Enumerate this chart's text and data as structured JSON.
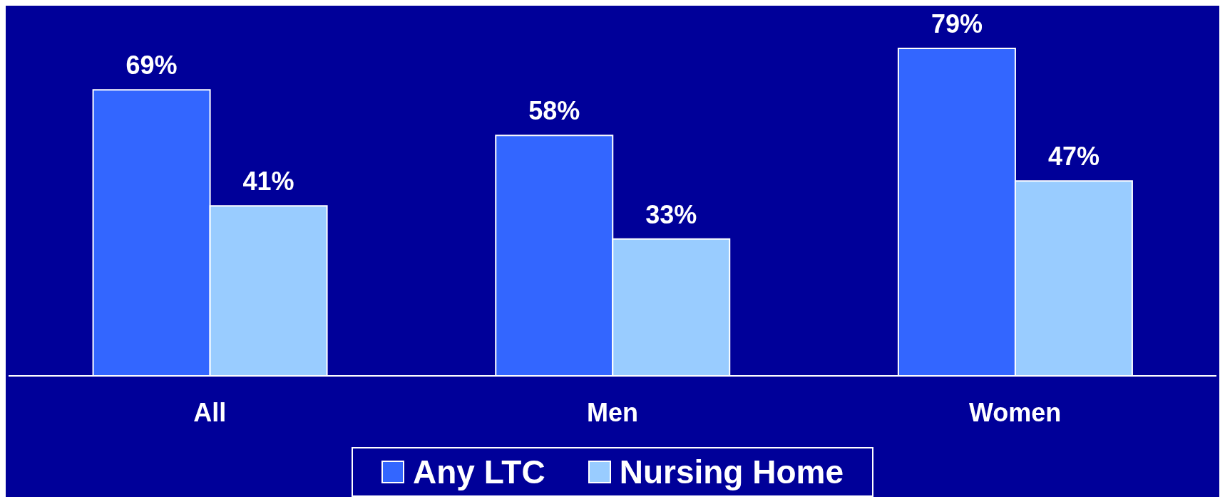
{
  "chart_data": {
    "type": "bar",
    "categories": [
      "All",
      "Men",
      "Women"
    ],
    "series": [
      {
        "name": "Any LTC",
        "color": "#3366ff",
        "values": [
          69,
          58,
          79
        ],
        "value_labels": [
          "69%",
          "58%",
          "79%"
        ]
      },
      {
        "name": "Nursing Home",
        "color": "#99ccff",
        "values": [
          41,
          33,
          47
        ],
        "value_labels": [
          "41%",
          "33%",
          "47%"
        ]
      }
    ],
    "legend": "bottom",
    "grid": false
  }
}
